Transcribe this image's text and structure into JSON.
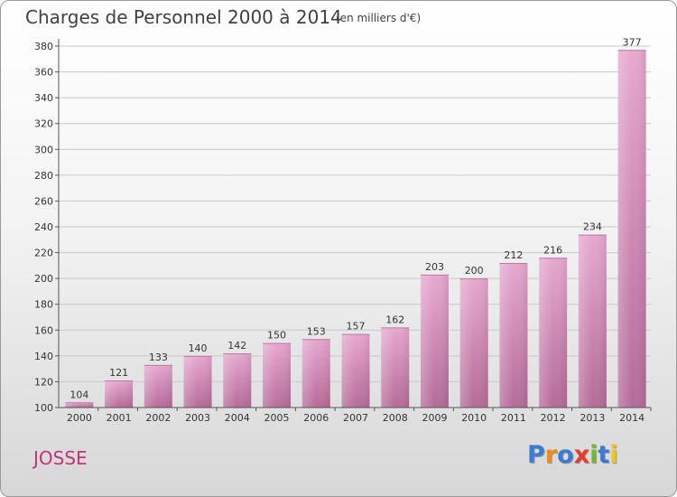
{
  "title": "Charges de Personnel 2000 à 2014",
  "subtitle": "(en milliers d'€)",
  "commune": "JOSSE",
  "logo": {
    "letters": [
      "P",
      "r",
      "o",
      "x",
      "i",
      "t",
      "i"
    ],
    "colors": [
      "#3a7bd5",
      "#f08a1c",
      "#3a7bd5",
      "#e8392a",
      "#70b82e",
      "#3a7bd5",
      "#f0c419"
    ]
  },
  "chart_data": {
    "type": "bar",
    "categories": [
      "2000",
      "2001",
      "2002",
      "2003",
      "2004",
      "2005",
      "2006",
      "2007",
      "2008",
      "2009",
      "2010",
      "2011",
      "2012",
      "2013",
      "2014"
    ],
    "values": [
      104,
      121,
      133,
      140,
      142,
      150,
      153,
      157,
      162,
      203,
      200,
      212,
      216,
      234,
      377
    ],
    "title": "Charges de Personnel 2000 à 2014",
    "subtitle": "(en milliers d'€)",
    "xlabel": "",
    "ylabel": "",
    "ylim": [
      100,
      380
    ],
    "yticks": [
      100,
      120,
      140,
      160,
      180,
      200,
      220,
      240,
      260,
      280,
      300,
      320,
      340,
      360,
      380
    ],
    "grid": true,
    "bar_color": "#d9a0c5",
    "bar_color_dark": "#b56b98"
  }
}
